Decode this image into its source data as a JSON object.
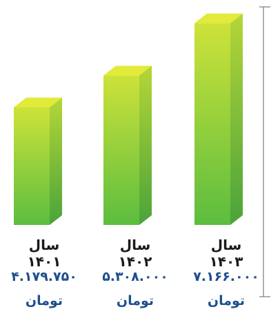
{
  "chart_data": {
    "type": "bar",
    "categories": [
      "سال ۱۴۰۱",
      "سال ۱۴۰۲",
      "سال ۱۴۰۳"
    ],
    "values": [
      4179750,
      5308000,
      7166000
    ],
    "value_labels": [
      "۴.۱۷۹.۷۵۰",
      "۵.۳۰۸.۰۰۰",
      "۷.۱۶۶.۰۰۰"
    ],
    "unit_label": "تومان",
    "title": "",
    "xlabel": "",
    "ylabel": "",
    "ylim": [
      0,
      7500000
    ],
    "grid": false,
    "legend": "none",
    "direction": "rtl",
    "colors": {
      "bar_top": "#e2ea3a",
      "bar_front_top": "#cde23a",
      "bar_front_bottom": "#5cbd3f",
      "bar_side_top": "#b5d638",
      "bar_side_bottom": "#4aa33a",
      "axis": "#7a7a7a",
      "year_text": "#1b1b1b",
      "value_text": "#1e4f8e"
    }
  }
}
